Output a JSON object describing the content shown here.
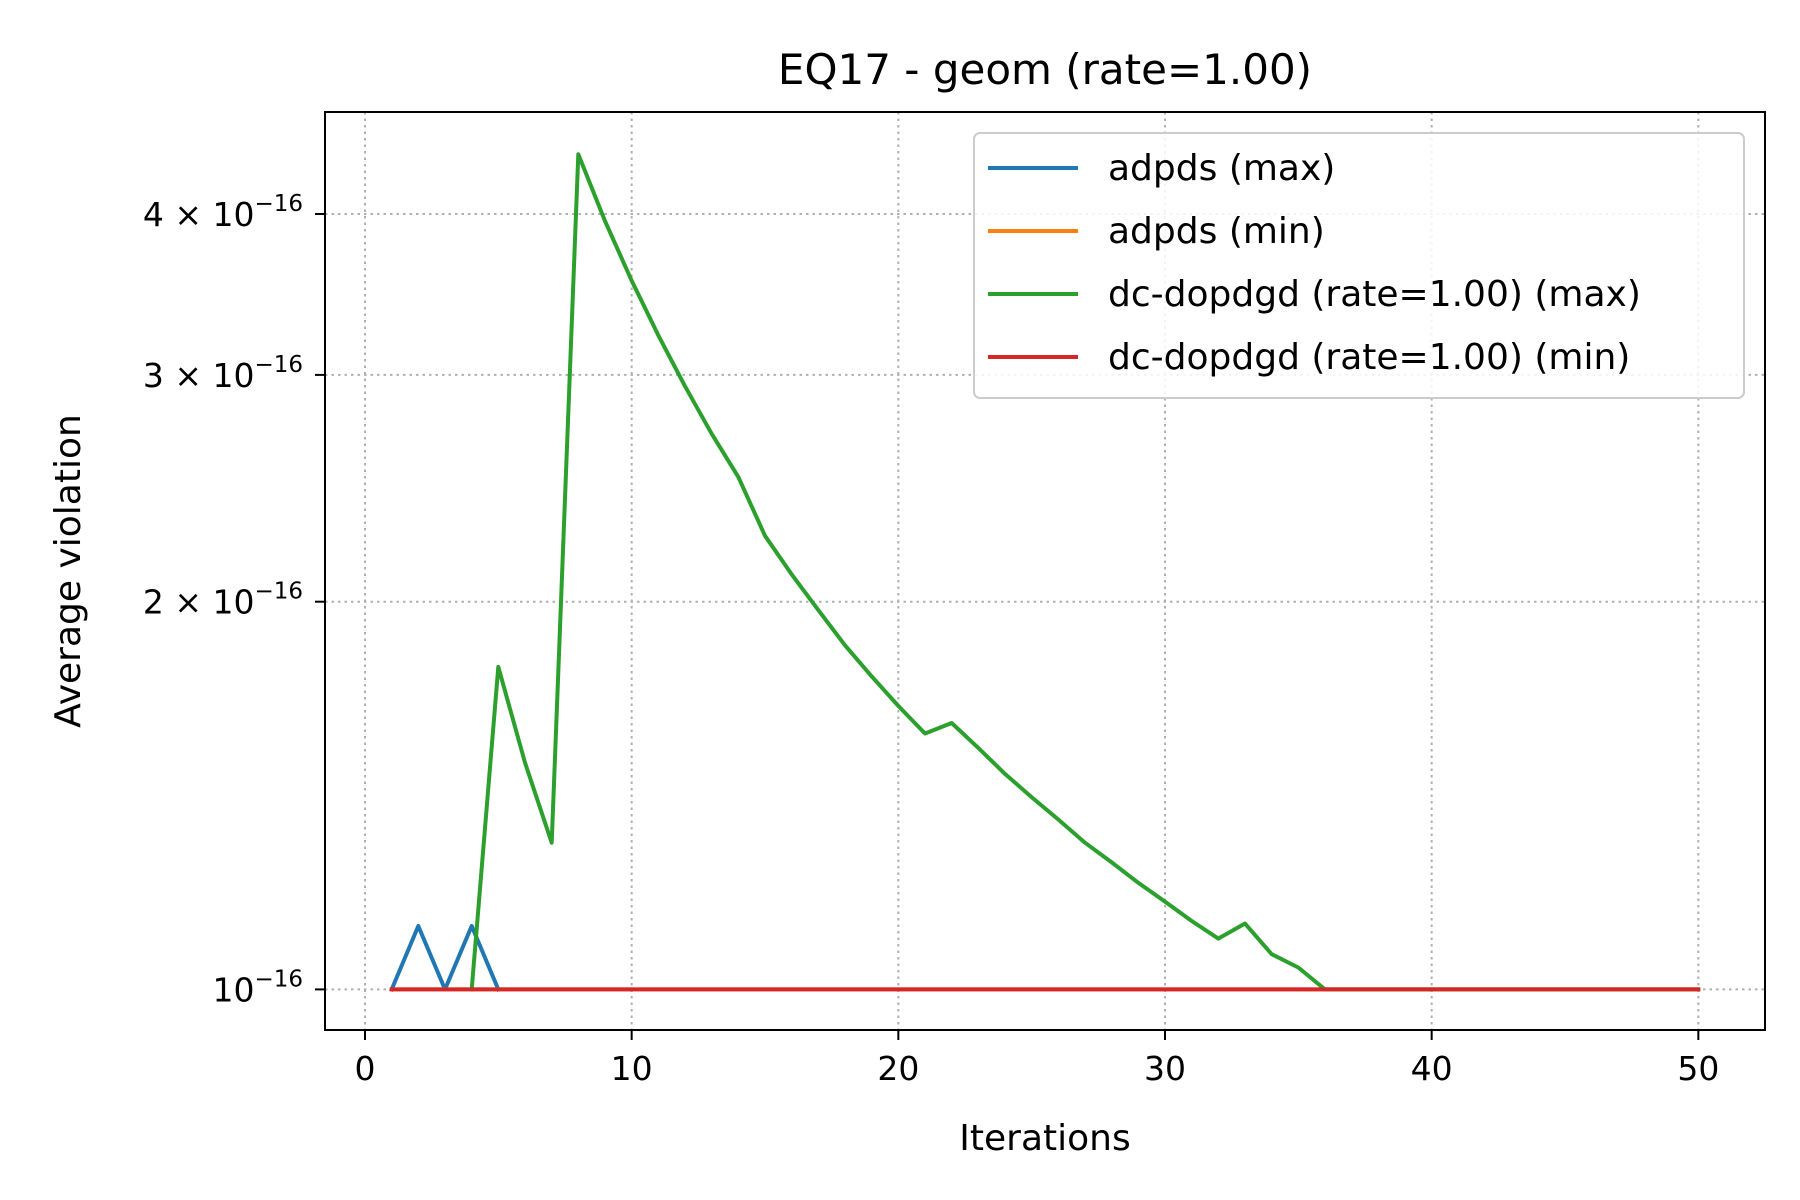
{
  "chart_data": {
    "type": "line",
    "title": "EQ17 - geom (rate=1.00)",
    "xlabel": "Iterations",
    "ylabel": "Average violation",
    "xscale": "linear",
    "yscale": "log",
    "xlim": [
      -1.5,
      52.5
    ],
    "ylim": [
      9.3e-17,
      4.8e-16
    ],
    "xticks": [
      0,
      10,
      20,
      30,
      40,
      50
    ],
    "xtick_labels": [
      "0",
      "10",
      "20",
      "30",
      "40",
      "50"
    ],
    "yticks": [
      {
        "value": 1e-16,
        "mantissa": "",
        "exp": "−16"
      },
      {
        "value": 2e-16,
        "mantissa": "2",
        "exp": "−16"
      },
      {
        "value": 3e-16,
        "mantissa": "3",
        "exp": "−16"
      },
      {
        "value": 4e-16,
        "mantissa": "4",
        "exp": "−16"
      }
    ],
    "grid": true,
    "legend_position": "upper right",
    "series": [
      {
        "name": "adpds (max)",
        "color": "#1f77b4",
        "x": [
          1,
          2,
          3,
          4,
          5
        ],
        "y": [
          1e-16,
          1.12e-16,
          1e-16,
          1.12e-16,
          1e-16
        ]
      },
      {
        "name": "adpds (min)",
        "color": "#ff7f0e",
        "x": [
          1,
          5,
          10,
          20,
          30,
          40,
          50
        ],
        "y": [
          1e-16,
          1e-16,
          1e-16,
          1e-16,
          1e-16,
          1e-16,
          1e-16
        ]
      },
      {
        "name": "dc-dopdgd (rate=1.00) (max)",
        "color": "#2ca02c",
        "x": [
          4,
          5,
          6,
          7,
          8,
          9,
          10,
          11,
          12,
          13,
          14,
          15,
          16,
          17,
          18,
          19,
          20,
          21,
          22,
          23,
          24,
          25,
          26,
          27,
          28,
          29,
          30,
          31,
          32,
          33,
          34,
          35,
          36,
          37,
          38,
          39,
          40,
          41,
          42,
          43,
          44,
          45,
          46,
          47,
          48,
          49,
          50
        ],
        "y": [
          1e-16,
          1.78e-16,
          1.5e-16,
          1.3e-16,
          4.45e-16,
          3.95e-16,
          3.55e-16,
          3.22e-16,
          2.94e-16,
          2.7e-16,
          2.5e-16,
          2.25e-16,
          2.1e-16,
          1.97e-16,
          1.85e-16,
          1.75e-16,
          1.66e-16,
          1.58e-16,
          1.61e-16,
          1.54e-16,
          1.47e-16,
          1.41e-16,
          1.355e-16,
          1.3e-16,
          1.255e-16,
          1.21e-16,
          1.17e-16,
          1.13e-16,
          1.095e-16,
          1.125e-16,
          1.065e-16,
          1.04e-16,
          1e-16,
          1e-16,
          1e-16,
          1e-16,
          1e-16,
          1e-16,
          1e-16,
          1e-16,
          1e-16,
          1e-16,
          1e-16,
          1e-16,
          1e-16,
          1e-16,
          1e-16
        ]
      },
      {
        "name": "dc-dopdgd (rate=1.00) (min)",
        "color": "#d62728",
        "x": [
          1,
          5,
          10,
          20,
          30,
          40,
          50
        ],
        "y": [
          1e-16,
          1e-16,
          1e-16,
          1e-16,
          1e-16,
          1e-16,
          1e-16
        ]
      }
    ]
  }
}
